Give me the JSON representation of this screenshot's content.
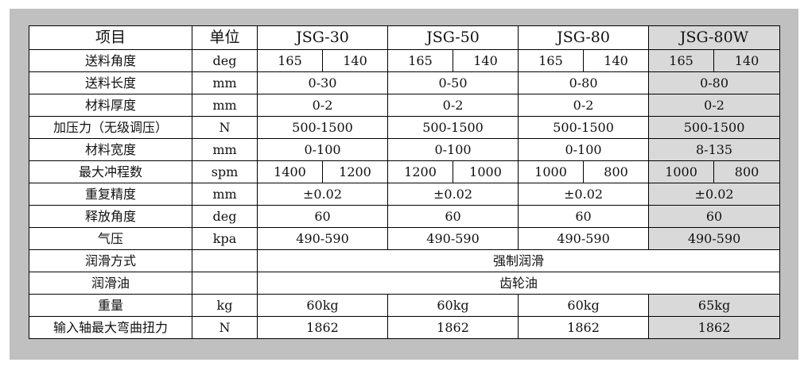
{
  "header": {
    "item": "项目",
    "unit": "单位",
    "models": [
      "JSG-30",
      "JSG-50",
      "JSG-80",
      "JSG-80W"
    ]
  },
  "rows": [
    {
      "label": "送料角度",
      "unit": "deg",
      "values": [
        "165",
        "140",
        "165",
        "140",
        "165",
        "140",
        "165",
        "140"
      ]
    },
    {
      "label": "送料长度",
      "unit": "mm",
      "values": [
        "0-30",
        "0-50",
        "0-80",
        "0-80"
      ]
    },
    {
      "label": "材料厚度",
      "unit": "mm",
      "values": [
        "0-2",
        "0-2",
        "0-2",
        "0-2"
      ]
    },
    {
      "label": "加压力（无级调压）",
      "unit": "N",
      "values": [
        "500-1500",
        "500-1500",
        "500-1500",
        "500-1500"
      ]
    },
    {
      "label": "材料宽度",
      "unit": "mm",
      "values": [
        "0-100",
        "0-100",
        "0-100",
        "8-135"
      ]
    },
    {
      "label": "最大冲程数",
      "unit": "spm",
      "values": [
        "1400",
        "1200",
        "1200",
        "1000",
        "1000",
        "800",
        "1000",
        "800"
      ]
    },
    {
      "label": "重复精度",
      "unit": "mm",
      "values": [
        "±0.02",
        "±0.02",
        "±0.02",
        "±0.02"
      ]
    },
    {
      "label": "释放角度",
      "unit": "deg",
      "values": [
        "60",
        "60",
        "60",
        "60"
      ]
    },
    {
      "label": "气压",
      "unit": "kpa",
      "values": [
        "490-590",
        "490-590",
        "490-590",
        "490-590"
      ]
    },
    {
      "label": "润滑方式",
      "unit": "",
      "values": [
        "强制润滑"
      ]
    },
    {
      "label": "润滑油",
      "unit": "",
      "values": [
        "齿轮油"
      ]
    },
    {
      "label": "重量",
      "unit": "kg",
      "values": [
        "60kg",
        "60kg",
        "60kg",
        "65kg"
      ]
    },
    {
      "label": "输入轴最大弯曲扭力",
      "unit": "N",
      "values": [
        "1862",
        "1862",
        "1862",
        "1862"
      ]
    }
  ],
  "colors": {
    "background": "#c0c0c0",
    "highlight_column": "#d9d9d9"
  }
}
